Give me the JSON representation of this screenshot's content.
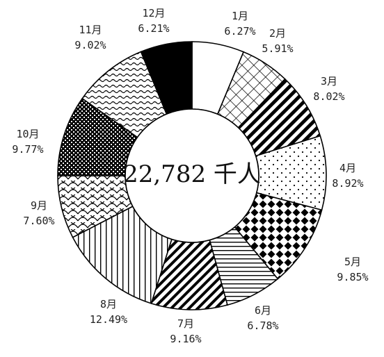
{
  "chart_data": {
    "type": "pie",
    "center_total": "22,782 千人",
    "slices": [
      {
        "label": "1月",
        "value_label": "6.27%",
        "value": 6.27,
        "pattern": "white"
      },
      {
        "label": "2月",
        "value_label": "5.91%",
        "value": 5.91,
        "pattern": "grid"
      },
      {
        "label": "3月",
        "value_label": "8.02%",
        "value": 8.02,
        "pattern": "diag-wide"
      },
      {
        "label": "4月",
        "value_label": "8.92%",
        "value": 8.92,
        "pattern": "dots"
      },
      {
        "label": "5月",
        "value_label": "9.85%",
        "value": 9.85,
        "pattern": "diamond"
      },
      {
        "label": "6月",
        "value_label": "6.78%",
        "value": 6.78,
        "pattern": "hlines"
      },
      {
        "label": "7月",
        "value_label": "9.16%",
        "value": 9.16,
        "pattern": "diag-bold"
      },
      {
        "label": "8月",
        "value_label": "12.49%",
        "value": 12.49,
        "pattern": "vlines"
      },
      {
        "label": "9月",
        "value_label": "7.60%",
        "value": 7.6,
        "pattern": "scales"
      },
      {
        "label": "10月",
        "value_label": "9.77%",
        "value": 9.77,
        "pattern": "checker"
      },
      {
        "label": "11月",
        "value_label": "9.02%",
        "value": 9.02,
        "pattern": "wave"
      },
      {
        "label": "12月",
        "value_label": "6.21%",
        "value": 6.21,
        "pattern": "black"
      }
    ]
  }
}
